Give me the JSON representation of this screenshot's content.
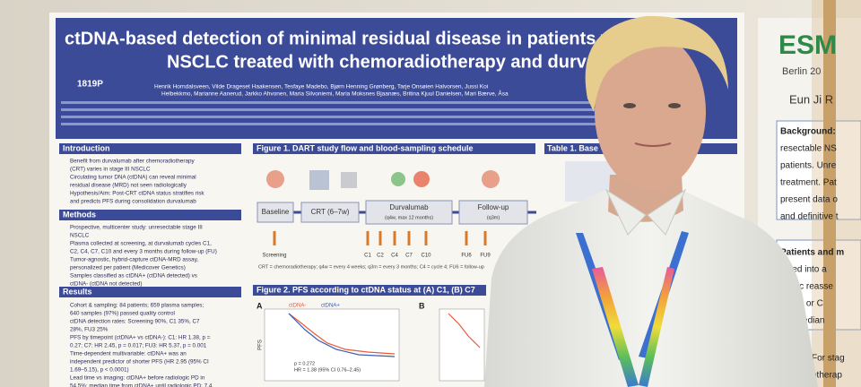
{
  "poster": {
    "title": [
      "ctDNA-based detection of minimal residual disease in patients w",
      "NSCLC treated with chemoradiotherapy and durval"
    ],
    "code": "1819P",
    "authors": [
      "Henrik Horndalsveen, Vilde Drageset Haakensen, Tesfaye Madebo, Bjørn Henning Grønberg, Tarje Onsøien Halvorsen, Jussi Koi",
      "Helbekkmo, Marianne Aanerud, Jarkko Ahvonen, Maria Silvoniemi, Maria Moksnes Bjaanæs, Britina Kjuul Danielsen, Mari Bærve, Åsa"
    ],
    "sections": {
      "introduction": {
        "heading": "Introduction",
        "lines": [
          "Benefit from durvalumab after chemoradiotherapy",
          "(CRT) varies in stage III NSCLC",
          "Circulating tumor DNA (ctDNA) can reveal minimal",
          "residual disease (MRD) not seen radiologically",
          "Hypothesis/Aim: Post-CRT ctDNA status stratifies risk",
          "and predicts PFS during consolidation durvalumab"
        ]
      },
      "methods": {
        "heading": "Methods",
        "lines": [
          "Prospective, multicenter study: unresectable stage III",
          "NSCLC",
          "Plasma collected at screening, at durvalumab cycles C1,",
          "C2, C4, C7, C10 and every 3 months during follow-up (FU)",
          "Tumor-agnostic, hybrid-capture ctDNA-MRD assay,",
          "personalized per patient (Medicover Genetics)",
          "Samples classified as ctDNA+ (ctDNA detected) vs",
          "ctDNA- (ctDNA not detected)"
        ]
      },
      "results": {
        "heading": "Results",
        "lines": [
          "Cohort & sampling: 84 patients; 659 plasma samples;",
          "640 samples (97%) passed quality control",
          "ctDNA detection rates: Screening 90%, C1 35%, C7",
          "28%, FU3 25%",
          "PFS by timepoint (ctDNA+ vs ctDNA-): C1: HR 1.38, p =",
          "0.27; C7: HR 2.45, p = 0.017; FU3: HR 5.37, p = 0.001",
          "Time-dependent multivariable: ctDNA+ was an",
          "independent predictor of shorter PFS (HR 2.95 (95% CI",
          "1.69–5.15), p < 0.0001)",
          "Lead time vs imaging: ctDNA+ before radiologic PD in",
          "54.5%; median time from ctDNA+ until radiologic PD: 7.4"
        ]
      }
    },
    "figure1": {
      "title": "Figure 1. DART study flow and blood-sampling schedule",
      "boxes": [
        "Baseline",
        "CRT (6–7w)",
        "Durvalumab",
        "Follow-up"
      ],
      "box_notes": [
        "(q4w, max 12 months)",
        "(q3m)"
      ],
      "timepoints": [
        "Screening",
        "C1",
        "C2",
        "C4",
        "C7",
        "C10",
        "FU6",
        "FU9"
      ],
      "footnote": "CRT = chemoradiotherapy; q4w = every 4 weeks; q3m = every 3 months; C4 = cycle 4; FU6 = follow-up"
    },
    "table1": {
      "title": "Table 1. Base"
    },
    "figure2": {
      "title": "Figure 2. PFS according to ctDNA status at (A) C1, (B) C7",
      "panels": [
        "A",
        "B"
      ],
      "legend": [
        "ctDNA-",
        "ctDNA+"
      ],
      "axis_label": "PFS",
      "stats": [
        "p = 0.272",
        "HR = 1.38 (95% CI 0.76–2.45)"
      ]
    }
  },
  "right_poster": {
    "logo": "ESM",
    "place": "Berlin 20",
    "author": "Eun Ji R",
    "lines": [
      "Background:",
      "resectable NS",
      "patients. Unre",
      "treatment. Pat",
      "present data o",
      "and definitive t"
    ],
    "lines2": [
      "Patients and m",
      "rolled into a",
      "abolic reasse",
      "erred] or C",
      "ed. Median"
    ],
    "lines3": [
      "For stag",
      "otherap"
    ]
  }
}
